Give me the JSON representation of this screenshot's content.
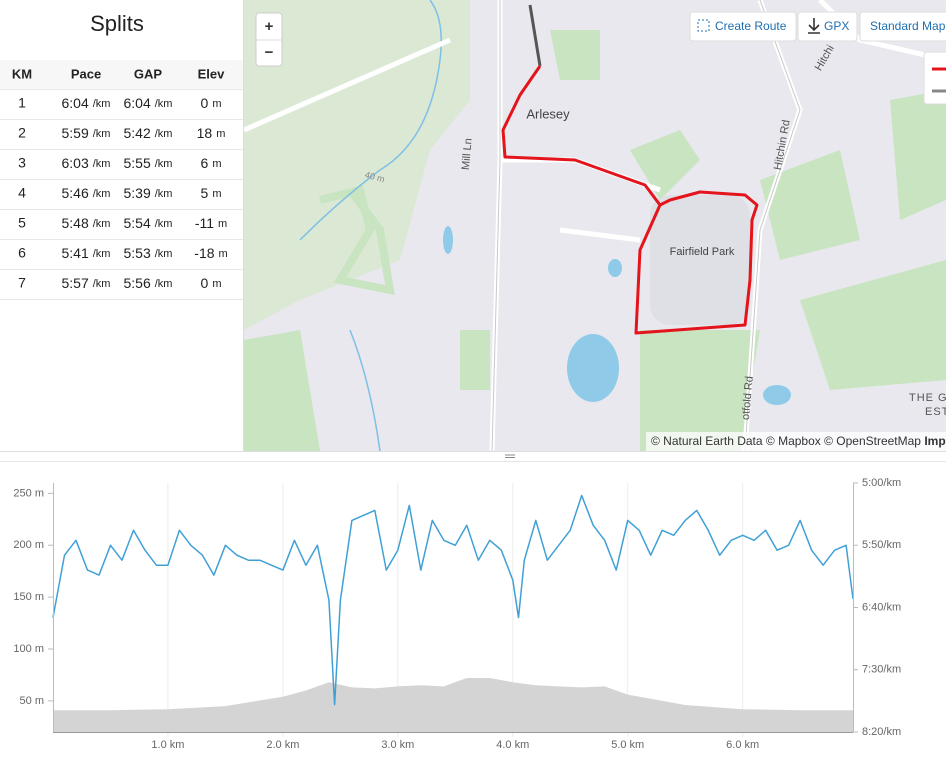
{
  "splits": {
    "title": "Splits",
    "columns": [
      "KM",
      "Pace",
      "GAP",
      "Elev"
    ],
    "rows": [
      {
        "km": "1",
        "pace": "6:04",
        "pace_unit": "/km",
        "gap": "6:04",
        "gap_unit": "/km",
        "elev": "0",
        "elev_unit": "m"
      },
      {
        "km": "2",
        "pace": "5:59",
        "pace_unit": "/km",
        "gap": "5:42",
        "gap_unit": "/km",
        "elev": "18",
        "elev_unit": "m"
      },
      {
        "km": "3",
        "pace": "6:03",
        "pace_unit": "/km",
        "gap": "5:55",
        "gap_unit": "/km",
        "elev": "6",
        "elev_unit": "m"
      },
      {
        "km": "4",
        "pace": "5:46",
        "pace_unit": "/km",
        "gap": "5:39",
        "gap_unit": "/km",
        "elev": "5",
        "elev_unit": "m"
      },
      {
        "km": "5",
        "pace": "5:48",
        "pace_unit": "/km",
        "gap": "5:54",
        "gap_unit": "/km",
        "elev": "-11",
        "elev_unit": "m"
      },
      {
        "km": "6",
        "pace": "5:41",
        "pace_unit": "/km",
        "gap": "5:53",
        "gap_unit": "/km",
        "elev": "-18",
        "elev_unit": "m"
      },
      {
        "km": "7",
        "pace": "5:57",
        "pace_unit": "/km",
        "gap": "5:56",
        "gap_unit": "/km",
        "elev": "0",
        "elev_unit": "m"
      }
    ]
  },
  "map": {
    "zoom_in": "+",
    "zoom_out": "−",
    "buttons": [
      "Create Route",
      "GPX",
      "Standard Map"
    ],
    "labels": {
      "town": "Arlesey",
      "estate": "Fairfield Park",
      "road1": "Hitchin Rd",
      "road2": "Mill Ln",
      "road3": "otfold Rd",
      "road4": "Hitchi",
      "contour": "40 m",
      "place1": "THE G",
      "place2": "EST"
    },
    "attribution": "© Natural Earth Data © Mapbox © OpenStreetMap",
    "attribution_link": "Imp"
  },
  "chart_data": {
    "type": "line",
    "xlim": [
      0,
      6.96
    ],
    "xticks": [
      {
        "value": 1,
        "label": "1.0 km"
      },
      {
        "value": 2,
        "label": "2.0 km"
      },
      {
        "value": 3,
        "label": "3.0 km"
      },
      {
        "value": 4,
        "label": "4.0 km"
      },
      {
        "value": 5,
        "label": "5.0 km"
      },
      {
        "value": 6,
        "label": "6.0 km"
      }
    ],
    "ylim": [
      20,
      260
    ],
    "yticks": [
      {
        "value": 50,
        "label": "50 m"
      },
      {
        "value": 100,
        "label": "100 m"
      },
      {
        "value": 150,
        "label": "150 m"
      },
      {
        "value": 200,
        "label": "200 m"
      },
      {
        "value": 250,
        "label": "250 m"
      }
    ],
    "y2lim": [
      500,
      300
    ],
    "y2ticks": [
      {
        "value": 300,
        "label": "5:00/km"
      },
      {
        "value": 350,
        "label": "5:50/km"
      },
      {
        "value": 400,
        "label": "6:40/km"
      },
      {
        "value": 450,
        "label": "7:30/km"
      },
      {
        "value": 500,
        "label": "8:20/km"
      }
    ],
    "series": [
      {
        "kind": "area",
        "color": "#d4d4d4",
        "x": [
          0,
          0.5,
          1,
          1.5,
          2,
          2.2,
          2.4,
          2.6,
          2.8,
          3,
          3.2,
          3.4,
          3.6,
          3.8,
          4,
          4.2,
          4.4,
          4.6,
          4.8,
          5,
          5.5,
          6,
          6.5,
          6.96
        ],
        "values": [
          41,
          41,
          42,
          45,
          54,
          60,
          68,
          63,
          62,
          64,
          65,
          64,
          72,
          72,
          68,
          65,
          64,
          63,
          64,
          56,
          46,
          42,
          41,
          41
        ]
      },
      {
        "kind": "line",
        "color": "#3fa0d6",
        "axis": "y2",
        "x": [
          0,
          0.1,
          0.2,
          0.3,
          0.4,
          0.5,
          0.6,
          0.7,
          0.8,
          0.9,
          1,
          1.1,
          1.2,
          1.3,
          1.4,
          1.5,
          1.6,
          1.7,
          1.8,
          1.9,
          2,
          2.1,
          2.2,
          2.3,
          2.4,
          2.45,
          2.5,
          2.6,
          2.7,
          2.8,
          2.9,
          3,
          3.1,
          3.2,
          3.3,
          3.4,
          3.5,
          3.6,
          3.7,
          3.8,
          3.9,
          4,
          4.05,
          4.1,
          4.2,
          4.3,
          4.4,
          4.5,
          4.6,
          4.7,
          4.8,
          4.9,
          5,
          5.1,
          5.2,
          5.3,
          5.4,
          5.5,
          5.6,
          5.7,
          5.8,
          5.9,
          6,
          6.1,
          6.2,
          6.3,
          6.4,
          6.5,
          6.6,
          6.7,
          6.8,
          6.9,
          6.96
        ],
        "values": [
          408,
          358,
          346,
          370,
          374,
          350,
          362,
          338,
          354,
          366,
          366,
          338,
          350,
          358,
          374,
          350,
          358,
          362,
          362,
          366,
          370,
          346,
          366,
          350,
          394,
          478,
          394,
          330,
          326,
          322,
          370,
          354,
          318,
          370,
          330,
          346,
          350,
          334,
          362,
          346,
          354,
          378,
          408,
          362,
          330,
          362,
          350,
          338,
          310,
          334,
          346,
          370,
          330,
          338,
          358,
          338,
          342,
          330,
          322,
          338,
          358,
          346,
          342,
          346,
          338,
          354,
          350,
          330,
          354,
          366,
          354,
          350,
          393
        ]
      }
    ]
  }
}
